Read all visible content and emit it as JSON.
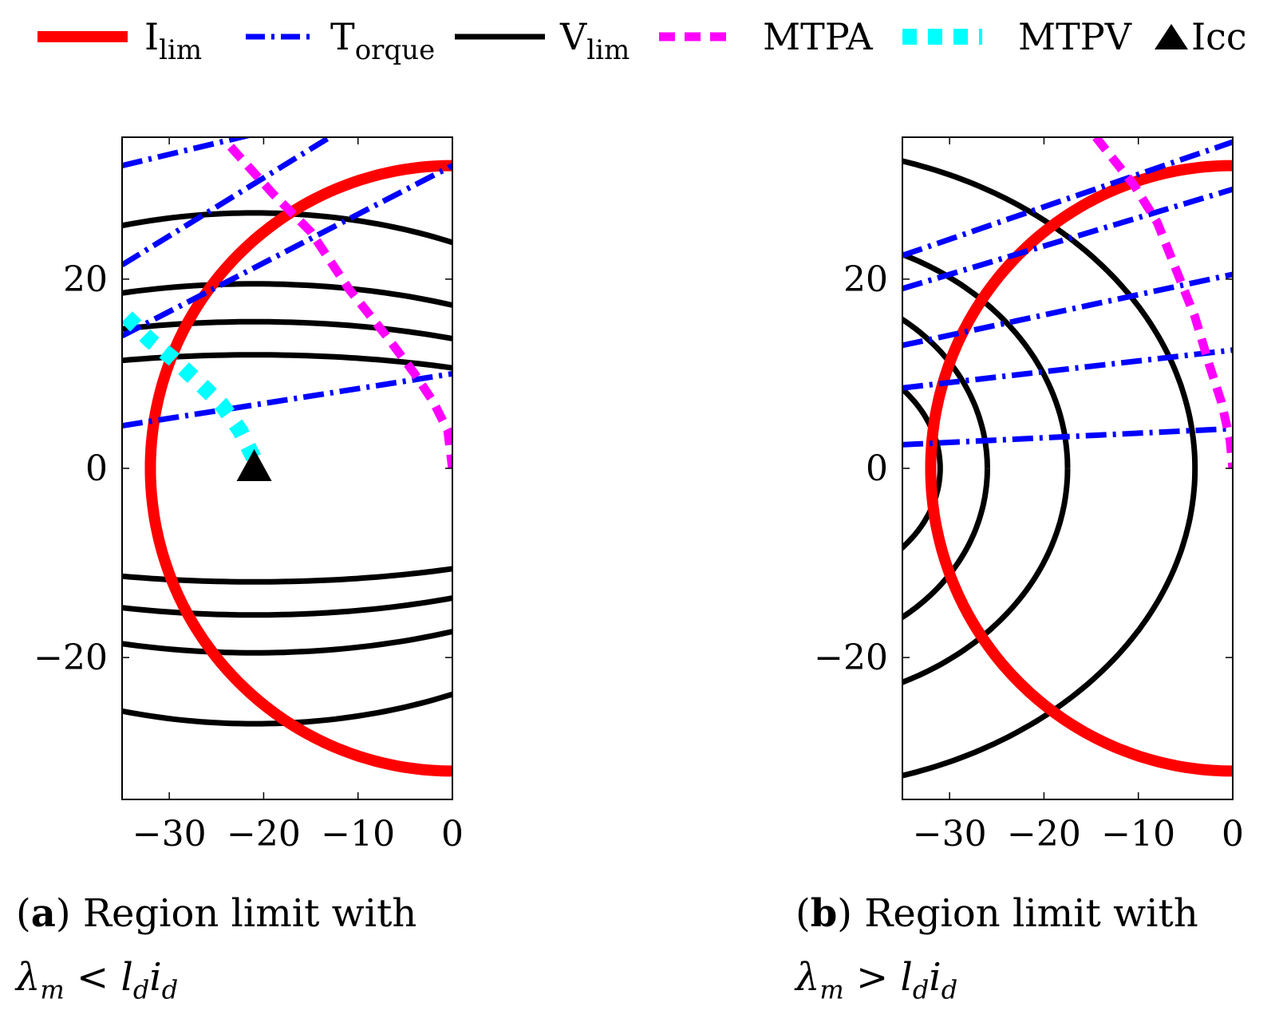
{
  "legend": [
    {
      "key": "ilim",
      "base": "I",
      "sub": "lim",
      "color": "#ff0000",
      "style": "solid"
    },
    {
      "key": "torque",
      "base": "T",
      "sub": "orque",
      "color": "#0000ff",
      "style": "dashdot"
    },
    {
      "key": "vlim",
      "base": "V",
      "sub": "lim",
      "color": "#000000",
      "style": "solid"
    },
    {
      "key": "mtpa",
      "base": "MTPA",
      "sub": "",
      "color": "#ff00ff",
      "style": "dashed"
    },
    {
      "key": "mtpv",
      "base": "MTPV",
      "sub": "",
      "color": "#00ffff",
      "style": "dotted"
    },
    {
      "key": "icc",
      "base": "Icc",
      "sub": "",
      "color": "#000000",
      "style": "triangle"
    }
  ],
  "captions": {
    "a": {
      "tag": "a",
      "line1": "Region limit with",
      "lhs": "λ",
      "lhs_sub": "m",
      "op": "<",
      "rhs1": "l",
      "rhs1_sub": "d",
      "rhs2": "i",
      "rhs2_sub": "d"
    },
    "b": {
      "tag": "b",
      "line1": "Region limit with",
      "lhs": "λ",
      "lhs_sub": "m",
      "op": ">",
      "rhs1": "l",
      "rhs1_sub": "d",
      "rhs2": "i",
      "rhs2_sub": "d"
    }
  },
  "chart_data": [
    {
      "id": "a",
      "type": "line",
      "xlim": [
        -35,
        0
      ],
      "ylim": [
        -35,
        35
      ],
      "xticks": [
        -30,
        -20,
        -10,
        0
      ],
      "yticks": [
        -20,
        0,
        20
      ],
      "xticklabels": [
        "−30",
        "−20",
        "−10",
        "0"
      ],
      "yticklabels": [
        "−20",
        "0",
        "20"
      ],
      "ilim": {
        "radius": 32
      },
      "vlim": {
        "center": [
          -21,
          0
        ],
        "a": 45,
        "bs": [
          12,
          15.5,
          19.5,
          27
        ]
      },
      "torque": [
        {
          "x": [
            -35,
            -14
          ],
          "y": [
            32,
            37
          ]
        },
        {
          "x": [
            -35,
            -13
          ],
          "y": [
            21.5,
            35
          ]
        },
        {
          "x": [
            -35,
            0
          ],
          "y": [
            14,
            32
          ]
        },
        {
          "x": [
            -35,
            0
          ],
          "y": [
            4.5,
            10
          ]
        }
      ],
      "mtpa": {
        "x": [
          -23.5,
          -19,
          -15,
          -11,
          -7,
          -4,
          -2,
          -0.5,
          0
        ],
        "y": [
          34,
          29,
          25,
          19,
          14,
          10,
          7,
          4,
          0
        ]
      },
      "mtpv": {
        "x": [
          -34.5,
          -32,
          -29.5,
          -27,
          -24.5,
          -22.5,
          -21
        ],
        "y": [
          16,
          13.5,
          11.5,
          9.2,
          6.8,
          4,
          1
        ]
      },
      "icc": [
        -21,
        0
      ]
    },
    {
      "id": "b",
      "type": "line",
      "xlim": [
        -35,
        0
      ],
      "ylim": [
        -35,
        35
      ],
      "xticks": [
        -30,
        -20,
        -10,
        0
      ],
      "yticks": [
        -20,
        0,
        20
      ],
      "xticklabels": [
        "−30",
        "−20",
        "−10",
        "0"
      ],
      "yticklabels": [
        "−20",
        "0",
        "20"
      ],
      "ilim": {
        "radius": 32
      },
      "vlim": {
        "center": [
          -48,
          0
        ],
        "a": [
          17,
          22,
          30.5,
          44
        ],
        "b": [
          13,
          19.5,
          25,
          34
        ]
      },
      "torque": [
        {
          "x": [
            -35,
            0
          ],
          "y": [
            22.5,
            34.5
          ]
        },
        {
          "x": [
            -35,
            0
          ],
          "y": [
            19,
            29.5
          ]
        },
        {
          "x": [
            -35,
            0
          ],
          "y": [
            13,
            20.5
          ]
        },
        {
          "x": [
            -35,
            0
          ],
          "y": [
            8.5,
            12.5
          ]
        },
        {
          "x": [
            -35,
            0
          ],
          "y": [
            2.5,
            4.2
          ]
        }
      ],
      "mtpa": {
        "x": [
          -14.5,
          -10.5,
          -8,
          -6,
          -4,
          -2.5,
          -1.2,
          -0.3,
          0
        ],
        "y": [
          35,
          30,
          26,
          21,
          16,
          11,
          7,
          3,
          0
        ]
      },
      "mtpv": null,
      "icc": null
    }
  ]
}
